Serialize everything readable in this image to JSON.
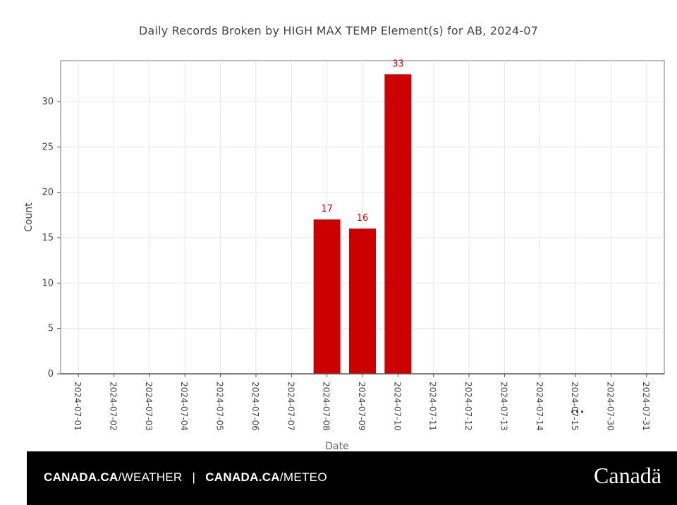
{
  "chart_data": {
    "type": "bar",
    "title": "Daily Records Broken by HIGH MAX TEMP Element(s) for AB, 2024-07",
    "xlabel": "Date",
    "ylabel": "Count",
    "categories": [
      "2024-07-01",
      "2024-07-02",
      "2024-07-03",
      "2024-07-04",
      "2024-07-05",
      "2024-07-06",
      "2024-07-07",
      "2024-07-08",
      "2024-07-09",
      "2024-07-10",
      "2024-07-11",
      "2024-07-12",
      "2024-07-13",
      "2024-07-14",
      "2024-07-15",
      "2024-07-30",
      "2024-07-31"
    ],
    "values": [
      0,
      0,
      0,
      0,
      0,
      0,
      0,
      17,
      16,
      33,
      0,
      0,
      0,
      0,
      0,
      0,
      0
    ],
    "ylim": [
      0,
      34.5
    ],
    "yticks": [
      0,
      5,
      10,
      15,
      20,
      25,
      30
    ],
    "grid": true,
    "bar_color": "#cc0000",
    "label_color": "#cc0000"
  },
  "axis_break_marker": "...",
  "footer": {
    "link1_prefix": "CANADA.CA",
    "link1_suffix": "/WEATHER",
    "separator": "|",
    "link2_prefix": "CANADA.CA",
    "link2_suffix": "/METEO",
    "wordmark": "Canadä"
  }
}
